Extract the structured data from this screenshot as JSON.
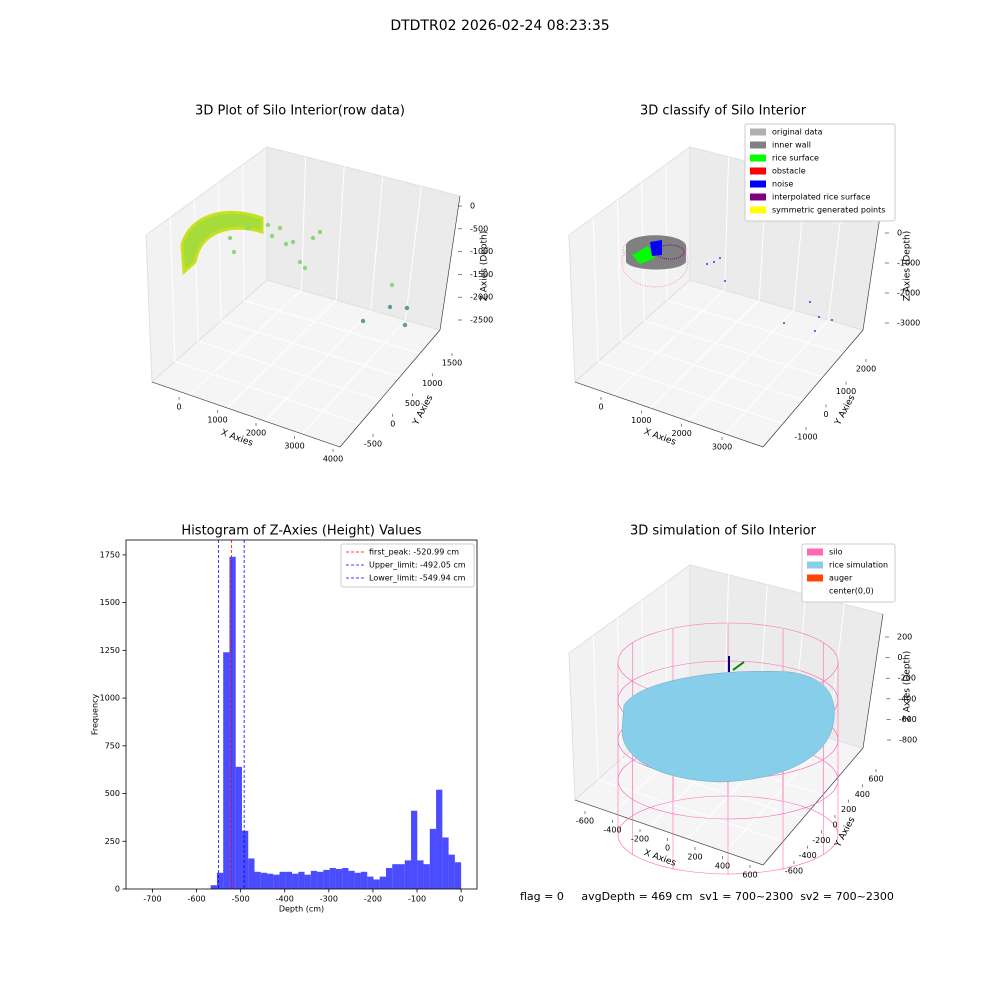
{
  "suptitle": "DTDTR02 2026-02-24 08:23:35",
  "footer": "flag = 0     avgDepth = 469 cm  sv1 = 700~2300  sv2 = 700~2300",
  "chart_data": [
    {
      "type": "scatter3d",
      "title": "3D Plot of Silo Interior(row data)",
      "xlabel": "X Axies",
      "ylabel": "Y Axies",
      "zlabel": "Z Axies (Depth)",
      "xticks": [
        0,
        1000,
        2000,
        3000,
        4000
      ],
      "yticks": [
        -500,
        0,
        500,
        1000,
        1500
      ],
      "zticks": [
        0,
        -500,
        -1000,
        -1500,
        -2000,
        -2500
      ]
    },
    {
      "type": "scatter3d",
      "title": "3D classify of Silo Interior",
      "xlabel": "X Axies",
      "ylabel": "Y Axies",
      "zlabel": "Z Axies (Depth)",
      "xticks": [
        0,
        1000,
        2000,
        3000
      ],
      "yticks": [
        -1000,
        0,
        1000,
        2000
      ],
      "zticks": [
        0,
        -1000,
        -2000,
        -3000
      ],
      "legend": [
        {
          "name": "original data",
          "color": "#b0b0b0"
        },
        {
          "name": "inner wall",
          "color": "#808080"
        },
        {
          "name": "rice surface",
          "color": "#00ff00"
        },
        {
          "name": "obstacle",
          "color": "#ff0000"
        },
        {
          "name": "noise",
          "color": "#0000ff"
        },
        {
          "name": "interpolated rice surface",
          "color": "#800080"
        },
        {
          "name": "symmetric generated points",
          "color": "#ffff00"
        }
      ]
    },
    {
      "type": "histogram",
      "title": "Histogram of Z-Axies (Height) Values",
      "xlabel": "Depth (cm)",
      "ylabel": "Frequency",
      "color": "#0000ff",
      "bins": [
        -568,
        -553.8,
        -539.6,
        -525.4,
        -511.2,
        -497,
        -482.8,
        -468.6,
        -454.4,
        -440.2,
        -426,
        -411.8,
        -397.6,
        -383.4,
        -369.2,
        -355,
        -340.8,
        -326.6,
        -312.4,
        -298.2,
        -284,
        -269.8,
        -255.6,
        -241.4,
        -227.2,
        -213,
        -198.8,
        -184.6,
        -170.4,
        -156.2,
        -142,
        -127.8,
        -113.6,
        -99.4,
        -85.2,
        -71,
        -56.8,
        -42.6,
        -28.4,
        -14.2,
        0
      ],
      "values": [
        20,
        85,
        1240,
        1740,
        640,
        305,
        160,
        90,
        85,
        80,
        75,
        90,
        90,
        80,
        90,
        75,
        95,
        90,
        100,
        110,
        105,
        110,
        95,
        85,
        90,
        65,
        50,
        65,
        110,
        130,
        130,
        150,
        410,
        150,
        130,
        315,
        520,
        270,
        180,
        140
      ],
      "xlim": [
        -760,
        36
      ],
      "ylim": [
        0,
        1828
      ],
      "xticks": [
        -700,
        -600,
        -500,
        -400,
        -300,
        -200,
        -100,
        0
      ],
      "yticks": [
        0,
        250,
        500,
        750,
        1000,
        1250,
        1500,
        1750
      ],
      "lines": [
        {
          "label": "first_peak: -520.99 cm",
          "value": -520.99,
          "color": "#ff0000"
        },
        {
          "label": "Upper_limit: -492.05 cm",
          "value": -492.05,
          "color": "#0000ff"
        },
        {
          "label": "Lower_limit: -549.94 cm",
          "value": -549.94,
          "color": "#0000ff"
        }
      ]
    },
    {
      "type": "scatter3d",
      "title": "3D simulation of Silo Interior",
      "xlabel": "X Axies",
      "ylabel": "Y Axies",
      "zlabel": "Z Axies (Depth)",
      "xticks": [
        -600,
        -400,
        -200,
        0,
        200,
        400,
        600
      ],
      "yticks": [
        -600,
        -400,
        -200,
        0,
        200,
        400,
        600
      ],
      "zticks": [
        200,
        0,
        -200,
        -400,
        -600,
        -800
      ],
      "legend": [
        {
          "name": "silo",
          "color": "#ff69b4"
        },
        {
          "name": "rice simulation",
          "color": "#87ceeb"
        },
        {
          "name": "auger",
          "color": "#ff4500"
        },
        {
          "name": "center(0,0)",
          "color": "#ffffff"
        }
      ]
    }
  ]
}
